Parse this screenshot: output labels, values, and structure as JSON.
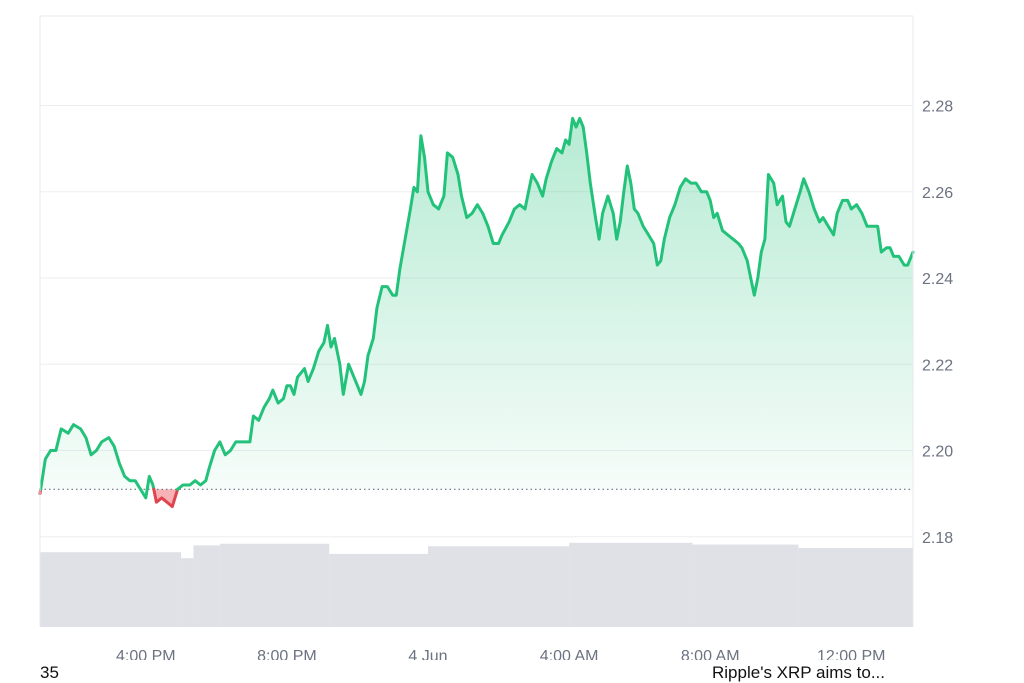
{
  "colors": {
    "up_line": "#22c27a",
    "down_line": "#e0454f",
    "up_fill": "#22c27a",
    "down_fill": "#f0545c",
    "grid": "#ebedf0",
    "volume": "#dfe1e6",
    "baseline": "#6b7280",
    "frame": "#e7e9ec"
  },
  "chart_data": {
    "type": "line",
    "baseline": 2.191,
    "ylim": [
      2.16,
      2.3
    ],
    "y_ticks": [
      "2.18",
      "2.20",
      "2.22",
      "2.24",
      "2.26",
      "2.28"
    ],
    "x_ticks": [
      {
        "label": "4:00 PM",
        "x": 0.0
      },
      {
        "label": "8:00 PM",
        "x": 4.0
      },
      {
        "label": "4 Jun",
        "x": 8.0
      },
      {
        "label": "4:00 AM",
        "x": 12.0
      },
      {
        "label": "8:00 AM",
        "x": 16.0
      },
      {
        "label": "12:00 PM",
        "x": 20.0
      }
    ],
    "xlim": [
      -3.0,
      21.75
    ],
    "x_unit": "hours (from 4:00 PM)",
    "series": [
      {
        "values": [
          [
            -3.0,
            2.19
          ],
          [
            -2.85,
            2.198
          ],
          [
            -2.7,
            2.2
          ],
          [
            -2.55,
            2.2
          ],
          [
            -2.4,
            2.205
          ],
          [
            -2.2,
            2.204
          ],
          [
            -2.05,
            2.206
          ],
          [
            -1.85,
            2.205
          ],
          [
            -1.7,
            2.203
          ],
          [
            -1.55,
            2.199
          ],
          [
            -1.4,
            2.2
          ],
          [
            -1.25,
            2.202
          ],
          [
            -1.05,
            2.203
          ],
          [
            -0.9,
            2.201
          ],
          [
            -0.75,
            2.197
          ],
          [
            -0.6,
            2.194
          ],
          [
            -0.45,
            2.193
          ],
          [
            -0.3,
            2.193
          ],
          [
            -0.15,
            2.191
          ],
          [
            0.0,
            2.189
          ],
          [
            0.1,
            2.194
          ],
          [
            0.2,
            2.192
          ],
          [
            0.3,
            2.188
          ],
          [
            0.45,
            2.189
          ],
          [
            0.6,
            2.188
          ],
          [
            0.75,
            2.187
          ],
          [
            0.9,
            2.191
          ],
          [
            1.05,
            2.192
          ],
          [
            1.25,
            2.192
          ],
          [
            1.4,
            2.193
          ],
          [
            1.55,
            2.192
          ],
          [
            1.7,
            2.193
          ],
          [
            1.8,
            2.196
          ],
          [
            1.95,
            2.2
          ],
          [
            2.1,
            2.202
          ],
          [
            2.25,
            2.199
          ],
          [
            2.4,
            2.2
          ],
          [
            2.55,
            2.202
          ],
          [
            2.75,
            2.202
          ],
          [
            2.95,
            2.202
          ],
          [
            3.05,
            2.208
          ],
          [
            3.2,
            2.207
          ],
          [
            3.35,
            2.21
          ],
          [
            3.5,
            2.212
          ],
          [
            3.6,
            2.214
          ],
          [
            3.75,
            2.211
          ],
          [
            3.9,
            2.212
          ],
          [
            4.0,
            2.215
          ],
          [
            4.1,
            2.215
          ],
          [
            4.2,
            2.213
          ],
          [
            4.3,
            2.217
          ],
          [
            4.5,
            2.219
          ],
          [
            4.6,
            2.216
          ],
          [
            4.75,
            2.219
          ],
          [
            4.9,
            2.223
          ],
          [
            5.05,
            2.225
          ],
          [
            5.15,
            2.229
          ],
          [
            5.25,
            2.224
          ],
          [
            5.35,
            2.226
          ],
          [
            5.5,
            2.22
          ],
          [
            5.6,
            2.213
          ],
          [
            5.75,
            2.22
          ],
          [
            5.85,
            2.218
          ],
          [
            6.0,
            2.215
          ],
          [
            6.1,
            2.213
          ],
          [
            6.2,
            2.216
          ],
          [
            6.3,
            2.222
          ],
          [
            6.45,
            2.226
          ],
          [
            6.55,
            2.233
          ],
          [
            6.7,
            2.238
          ],
          [
            6.85,
            2.238
          ],
          [
            7.0,
            2.236
          ],
          [
            7.1,
            2.236
          ],
          [
            7.2,
            2.242
          ],
          [
            7.35,
            2.249
          ],
          [
            7.5,
            2.256
          ],
          [
            7.6,
            2.261
          ],
          [
            7.7,
            2.26
          ],
          [
            7.8,
            2.273
          ],
          [
            7.9,
            2.268
          ],
          [
            8.0,
            2.26
          ],
          [
            8.15,
            2.257
          ],
          [
            8.3,
            2.256
          ],
          [
            8.45,
            2.259
          ],
          [
            8.55,
            2.269
          ],
          [
            8.7,
            2.268
          ],
          [
            8.85,
            2.264
          ],
          [
            8.95,
            2.259
          ],
          [
            9.1,
            2.254
          ],
          [
            9.25,
            2.255
          ],
          [
            9.4,
            2.257
          ],
          [
            9.55,
            2.255
          ],
          [
            9.7,
            2.252
          ],
          [
            9.85,
            2.248
          ],
          [
            10.0,
            2.248
          ],
          [
            10.1,
            2.25
          ],
          [
            10.3,
            2.253
          ],
          [
            10.45,
            2.256
          ],
          [
            10.6,
            2.257
          ],
          [
            10.75,
            2.256
          ],
          [
            10.85,
            2.26
          ],
          [
            10.95,
            2.264
          ],
          [
            11.1,
            2.262
          ],
          [
            11.25,
            2.259
          ],
          [
            11.35,
            2.263
          ],
          [
            11.5,
            2.267
          ],
          [
            11.65,
            2.27
          ],
          [
            11.8,
            2.269
          ],
          [
            11.9,
            2.272
          ],
          [
            12.0,
            2.271
          ],
          [
            12.1,
            2.277
          ],
          [
            12.2,
            2.275
          ],
          [
            12.3,
            2.277
          ],
          [
            12.4,
            2.275
          ],
          [
            12.5,
            2.269
          ],
          [
            12.6,
            2.262
          ],
          [
            12.75,
            2.254
          ],
          [
            12.85,
            2.249
          ],
          [
            12.95,
            2.255
          ],
          [
            13.1,
            2.259
          ],
          [
            13.25,
            2.255
          ],
          [
            13.35,
            2.249
          ],
          [
            13.45,
            2.253
          ],
          [
            13.55,
            2.26
          ],
          [
            13.65,
            2.266
          ],
          [
            13.75,
            2.262
          ],
          [
            13.85,
            2.256
          ],
          [
            13.95,
            2.255
          ],
          [
            14.1,
            2.252
          ],
          [
            14.25,
            2.25
          ],
          [
            14.4,
            2.248
          ],
          [
            14.5,
            2.243
          ],
          [
            14.6,
            2.244
          ],
          [
            14.7,
            2.249
          ],
          [
            14.85,
            2.254
          ],
          [
            15.0,
            2.257
          ],
          [
            15.15,
            2.261
          ],
          [
            15.3,
            2.263
          ],
          [
            15.45,
            2.262
          ],
          [
            15.6,
            2.262
          ],
          [
            15.75,
            2.26
          ],
          [
            15.9,
            2.26
          ],
          [
            16.0,
            2.258
          ],
          [
            16.1,
            2.254
          ],
          [
            16.2,
            2.255
          ],
          [
            16.35,
            2.251
          ],
          [
            16.5,
            2.25
          ],
          [
            16.65,
            2.249
          ],
          [
            16.8,
            2.248
          ],
          [
            16.9,
            2.247
          ],
          [
            17.05,
            2.244
          ],
          [
            17.15,
            2.24
          ],
          [
            17.25,
            2.236
          ],
          [
            17.35,
            2.24
          ],
          [
            17.45,
            2.246
          ],
          [
            17.55,
            2.249
          ],
          [
            17.65,
            2.264
          ],
          [
            17.8,
            2.262
          ],
          [
            17.9,
            2.257
          ],
          [
            18.05,
            2.259
          ],
          [
            18.15,
            2.253
          ],
          [
            18.25,
            2.252
          ],
          [
            18.4,
            2.256
          ],
          [
            18.55,
            2.26
          ],
          [
            18.65,
            2.263
          ],
          [
            18.8,
            2.26
          ],
          [
            18.95,
            2.256
          ],
          [
            19.1,
            2.253
          ],
          [
            19.2,
            2.254
          ],
          [
            19.35,
            2.252
          ],
          [
            19.5,
            2.25
          ],
          [
            19.6,
            2.255
          ],
          [
            19.75,
            2.258
          ],
          [
            19.9,
            2.258
          ],
          [
            20.0,
            2.256
          ],
          [
            20.15,
            2.257
          ],
          [
            20.3,
            2.255
          ],
          [
            20.45,
            2.252
          ],
          [
            20.6,
            2.252
          ],
          [
            20.75,
            2.252
          ],
          [
            20.85,
            2.246
          ],
          [
            21.0,
            2.247
          ],
          [
            21.1,
            2.247
          ],
          [
            21.2,
            2.245
          ],
          [
            21.35,
            2.245
          ],
          [
            21.5,
            2.243
          ],
          [
            21.6,
            2.243
          ],
          [
            21.75,
            2.246
          ]
        ]
      }
    ],
    "volume": [
      {
        "x0": -3.0,
        "x1": 1.0,
        "v": 0.88
      },
      {
        "x0": 1.0,
        "x1": 1.35,
        "v": 0.81
      },
      {
        "x0": 1.35,
        "x1": 2.1,
        "v": 0.96
      },
      {
        "x0": 2.1,
        "x1": 5.2,
        "v": 0.98
      },
      {
        "x0": 5.2,
        "x1": 8.0,
        "v": 0.86
      },
      {
        "x0": 8.0,
        "x1": 12.0,
        "v": 0.95
      },
      {
        "x0": 12.0,
        "x1": 15.5,
        "v": 0.99
      },
      {
        "x0": 15.5,
        "x1": 18.5,
        "v": 0.97
      },
      {
        "x0": 18.5,
        "x1": 21.75,
        "v": 0.93
      }
    ]
  },
  "footer": {
    "left": "35",
    "right": "Ripple's XRP aims to..."
  }
}
